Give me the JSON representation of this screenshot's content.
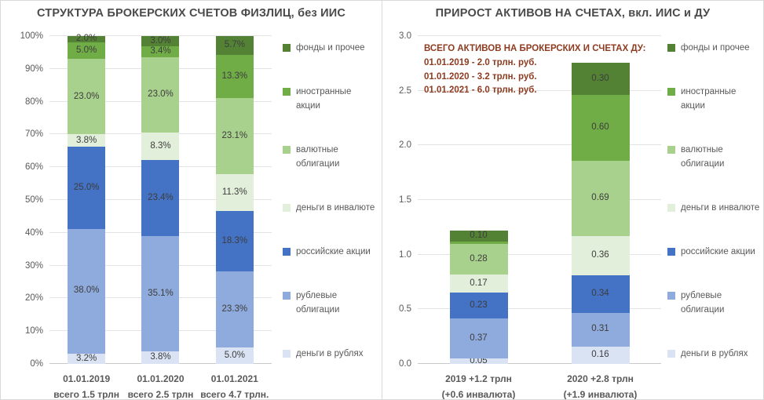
{
  "palette": {
    "money_rub": "#dae3f3",
    "bonds_rub": "#8faadc",
    "stocks_ru": "#4472c4",
    "money_fx": "#e2efda",
    "bonds_fx": "#a9d18e",
    "foreign_stocks": "#70ad47",
    "funds": "#548235"
  },
  "text_colors": {
    "title": "#4a4a4a",
    "axis": "#595959",
    "annotation": "#8e3b20",
    "data_label": "#3d3d3d"
  },
  "legend": [
    {
      "label": "фонды и прочее",
      "color_key": "funds"
    },
    {
      "label": "иностранные акции",
      "color_key": "foreign_stocks"
    },
    {
      "label": "валютные облигации",
      "color_key": "bonds_fx"
    },
    {
      "label": "деньги в инвалюте",
      "color_key": "money_fx"
    },
    {
      "label": "российские акции",
      "color_key": "stocks_ru"
    },
    {
      "label": "рублевые облигации",
      "color_key": "bonds_rub"
    },
    {
      "label": "деньги в рублях",
      "color_key": "money_rub"
    }
  ],
  "chart_data": [
    {
      "type": "bar",
      "stacked": true,
      "title": "СТРУКТУРА БРОКЕРСКИХ СЧЕТОВ ФИЗЛИЦ, без ИИС",
      "ylim": [
        0,
        100
      ],
      "yticks": [
        "0%",
        "10%",
        "20%",
        "30%",
        "40%",
        "50%",
        "60%",
        "70%",
        "80%",
        "90%",
        "100%"
      ],
      "grid": true,
      "legend_position": "right",
      "categories": [
        "01.01.2019\nвсего 1.5 трлн",
        "01.01.2020\nвсего 2.5 трлн",
        "01.01.2021\nвсего 4.7 трлн."
      ],
      "series": [
        {
          "name": "деньги в рублях",
          "color_key": "money_rub",
          "values": [
            3.2,
            3.8,
            5.0
          ],
          "labels": [
            "3.2%",
            "3.8%",
            "5.0%"
          ]
        },
        {
          "name": "рублевые облигации",
          "color_key": "bonds_rub",
          "values": [
            38.0,
            35.1,
            23.3
          ],
          "labels": [
            "38.0%",
            "35.1%",
            "23.3%"
          ]
        },
        {
          "name": "российские акции",
          "color_key": "stocks_ru",
          "values": [
            25.0,
            23.4,
            18.3
          ],
          "labels": [
            "25.0%",
            "23.4%",
            "18.3%"
          ]
        },
        {
          "name": "деньги в инвалюте",
          "color_key": "money_fx",
          "values": [
            3.8,
            8.3,
            11.3
          ],
          "labels": [
            "3.8%",
            "8.3%",
            "11.3%"
          ]
        },
        {
          "name": "валютные облигации",
          "color_key": "bonds_fx",
          "values": [
            23.0,
            23.0,
            23.1
          ],
          "labels": [
            "23.0%",
            "23.0%",
            "23.1%"
          ]
        },
        {
          "name": "иностранные акции",
          "color_key": "foreign_stocks",
          "values": [
            5.0,
            3.4,
            13.3
          ],
          "labels": [
            "5.0%",
            "3.4%",
            "13.3%"
          ]
        },
        {
          "name": "фонды и прочее",
          "color_key": "funds",
          "values": [
            2.0,
            3.0,
            5.7
          ],
          "labels": [
            "2.0%",
            "3.0%",
            "5.7%"
          ]
        }
      ]
    },
    {
      "type": "bar",
      "stacked": true,
      "title": "ПРИРОСТ АКТИВОВ НА СЧЕТАХ, вкл. ИИС и ДУ",
      "ylim": [
        0,
        3.0
      ],
      "yticks": [
        "0.0",
        "0.5",
        "1.0",
        "1.5",
        "2.0",
        "2.5",
        "3.0"
      ],
      "grid": true,
      "legend_position": "right",
      "annotation": {
        "heading": "ВСЕГО АКТИВОВ НА БРОКЕРСКИХ И СЧЕТАХ ДУ:",
        "lines": [
          "01.01.2019 - 2.0 трлн. руб.",
          "01.01.2020 - 3.2 трлн. руб.",
          "01.01.2021 - 6.0 трлн. руб."
        ]
      },
      "categories": [
        "2019 +1.2 трлн\n(+0.6 инвалюта)",
        "2020 +2.8 трлн\n(+1.9 инвалюта)"
      ],
      "series": [
        {
          "name": "деньги в рублях",
          "color_key": "money_rub",
          "values": [
            0.05,
            0.16
          ],
          "labels": [
            "0.05",
            "0.16"
          ]
        },
        {
          "name": "рублевые облигации",
          "color_key": "bonds_rub",
          "values": [
            0.37,
            0.31
          ],
          "labels": [
            "0.37",
            "0.31"
          ]
        },
        {
          "name": "российские акции",
          "color_key": "stocks_ru",
          "values": [
            0.23,
            0.34
          ],
          "labels": [
            "0.23",
            "0.34"
          ]
        },
        {
          "name": "деньги в инвалюте",
          "color_key": "money_fx",
          "values": [
            0.17,
            0.36
          ],
          "labels": [
            "0.17",
            "0.36"
          ]
        },
        {
          "name": "валютные облигации",
          "color_key": "bonds_fx",
          "values": [
            0.28,
            0.69
          ],
          "labels": [
            "0.28",
            "0.69"
          ]
        },
        {
          "name": "иностранные акции",
          "color_key": "foreign_stocks",
          "values": [
            0.02,
            0.6
          ],
          "labels": [
            null,
            "0.60"
          ]
        },
        {
          "name": "фонды и прочее",
          "color_key": "funds",
          "values": [
            0.1,
            0.3
          ],
          "labels": [
            "0.10",
            "0.30"
          ]
        }
      ]
    }
  ]
}
